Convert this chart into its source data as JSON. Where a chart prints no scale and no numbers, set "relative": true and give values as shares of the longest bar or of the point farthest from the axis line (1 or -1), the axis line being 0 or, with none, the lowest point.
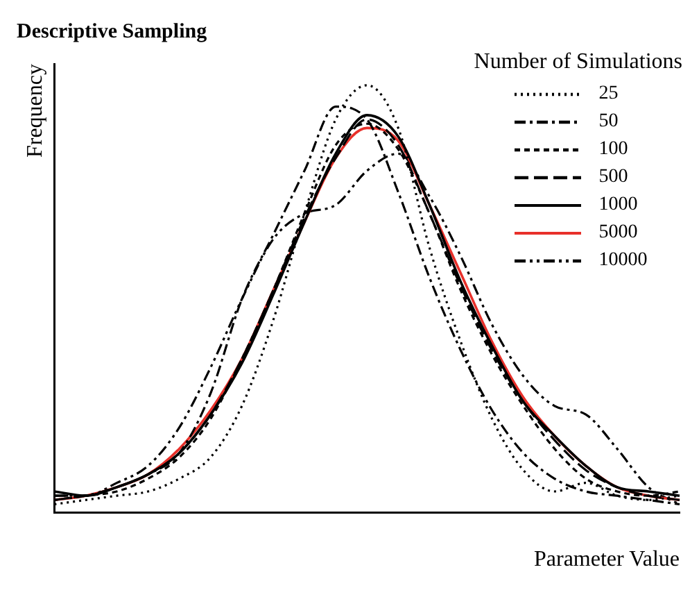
{
  "chart_data": {
    "type": "line",
    "title": "Descriptive Sampling",
    "xlabel": "Parameter Value",
    "ylabel": "Frequency",
    "legend_title": "Number of Simulations",
    "legend": "top right",
    "relative": true,
    "marker": "none",
    "grid": false,
    "categories": [
      null,
      null,
      null,
      null,
      null,
      null,
      null,
      null,
      null,
      null,
      null,
      null,
      null,
      null,
      null,
      null,
      null,
      null,
      null,
      null,
      null
    ],
    "series": [
      {
        "name": "25",
        "color": "#000000",
        "line_style": "dotted",
        "values": [
          0.02,
          0.03,
          0.04,
          0.05,
          0.08,
          0.13,
          0.25,
          0.45,
          0.7,
          0.92,
          1.0,
          0.9,
          0.62,
          0.4,
          0.22,
          0.1,
          0.05,
          0.07,
          0.04,
          0.03,
          0.04
        ]
      },
      {
        "name": "50",
        "color": "#000000",
        "line_style": "dashed",
        "values": [
          0.03,
          0.04,
          0.06,
          0.09,
          0.14,
          0.28,
          0.5,
          0.65,
          0.8,
          0.95,
          0.92,
          0.75,
          0.55,
          0.38,
          0.24,
          0.14,
          0.08,
          0.05,
          0.04,
          0.03,
          0.02
        ]
      },
      {
        "name": "100",
        "color": "#000000",
        "line_style": "dashed",
        "values": [
          0.03,
          0.04,
          0.05,
          0.08,
          0.13,
          0.22,
          0.36,
          0.52,
          0.7,
          0.86,
          0.91,
          0.85,
          0.7,
          0.52,
          0.37,
          0.25,
          0.15,
          0.08,
          0.05,
          0.04,
          0.05
        ]
      },
      {
        "name": "500",
        "color": "#000000",
        "line_style": "dashed",
        "values": [
          0.04,
          0.04,
          0.06,
          0.09,
          0.14,
          0.23,
          0.36,
          0.52,
          0.69,
          0.83,
          0.92,
          0.86,
          0.7,
          0.53,
          0.38,
          0.26,
          0.17,
          0.1,
          0.06,
          0.04,
          0.03
        ]
      },
      {
        "name": "1000",
        "color": "#000000",
        "line_style": "solid",
        "values": [
          0.05,
          0.04,
          0.06,
          0.09,
          0.14,
          0.23,
          0.35,
          0.51,
          0.68,
          0.84,
          0.93,
          0.88,
          0.72,
          0.54,
          0.39,
          0.26,
          0.18,
          0.11,
          0.06,
          0.05,
          0.04
        ]
      },
      {
        "name": "5000",
        "color": "#e8302a",
        "line_style": "solid",
        "values": [
          0.03,
          0.04,
          0.06,
          0.09,
          0.15,
          0.24,
          0.36,
          0.52,
          0.68,
          0.83,
          0.9,
          0.87,
          0.72,
          0.56,
          0.4,
          0.27,
          0.18,
          0.11,
          0.06,
          0.04,
          0.03
        ]
      },
      {
        "name": "10000",
        "color": "#000000",
        "line_style": "dashed",
        "values": [
          0.04,
          0.04,
          0.07,
          0.11,
          0.2,
          0.34,
          0.5,
          0.64,
          0.7,
          0.72,
          0.8,
          0.84,
          0.74,
          0.6,
          0.44,
          0.32,
          0.25,
          0.23,
          0.15,
          0.06,
          0.02
        ]
      }
    ]
  }
}
